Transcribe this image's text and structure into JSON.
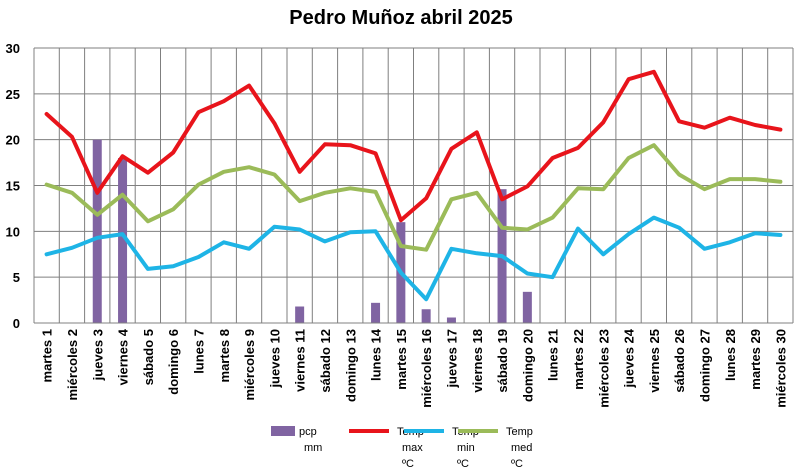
{
  "chart_data": {
    "type": "bar",
    "title": "Pedro Muñoz abril 2025",
    "xlabel": "",
    "ylabel": "",
    "ylim": [
      0,
      30
    ],
    "yticks": [
      0,
      5,
      10,
      15,
      20,
      25,
      30
    ],
    "grid": true,
    "legend_position": "bottom",
    "categories": [
      "martes 1",
      "miércoles 2",
      "jueves 3",
      "viernes 4",
      "sábado 5",
      "domingo 6",
      "lunes 7",
      "martes 8",
      "miércoles 9",
      "jueves 10",
      "viernes 11",
      "sábado 12",
      "domingo 13",
      "lunes 14",
      "martes 15",
      "miércoles 16",
      "jueves 17",
      "viernes 18",
      "sábado 19",
      "domingo 20",
      "lunes 21",
      "martes 22",
      "miércoles 23",
      "jueves 24",
      "viernes 25",
      "sábado 26",
      "domingo 27",
      "lunes 28",
      "martes 29",
      "miércoles 30"
    ],
    "series": [
      {
        "name": "pcp mm",
        "kind": "bar",
        "color": "#8064A2",
        "values": [
          0,
          0,
          20,
          18,
          0,
          0,
          0,
          0,
          0,
          0,
          1.8,
          0,
          0,
          2.2,
          11,
          1.5,
          0.6,
          0,
          14.6,
          3.4,
          0,
          0,
          0,
          0,
          0,
          0,
          0,
          0,
          0,
          0
        ]
      },
      {
        "name": "Temp max ºC",
        "kind": "line",
        "color": "#E8141B",
        "values": [
          22.8,
          20.3,
          14.2,
          18.2,
          16.4,
          18.6,
          23,
          24.2,
          25.9,
          21.8,
          16.5,
          19.5,
          19.4,
          18.5,
          11.2,
          13.6,
          19,
          20.8,
          13.5,
          14.9,
          18,
          19.1,
          21.9,
          26.6,
          27.4,
          22,
          21.3,
          22.4,
          21.6,
          21.1
        ]
      },
      {
        "name": "Temp min ºC",
        "kind": "line",
        "color": "#1EB4E6",
        "values": [
          7.5,
          8.2,
          9.3,
          9.7,
          5.9,
          6.2,
          7.2,
          8.8,
          8.1,
          10.5,
          10.2,
          8.9,
          9.9,
          10,
          5.5,
          2.6,
          8.1,
          7.6,
          7.3,
          5.4,
          5,
          10.3,
          7.5,
          9.7,
          11.5,
          10.4,
          8.1,
          8.8,
          9.8,
          9.6
        ]
      },
      {
        "name": "Temp med ºC",
        "kind": "line",
        "color": "#9BBB59",
        "values": [
          15.1,
          14.2,
          11.8,
          14,
          11.1,
          12.4,
          15.1,
          16.5,
          17,
          16.2,
          13.3,
          14.2,
          14.7,
          14.3,
          8.4,
          8,
          13.5,
          14.2,
          10.4,
          10.2,
          11.5,
          14.7,
          14.6,
          18,
          19.4,
          16.2,
          14.6,
          15.7,
          15.7,
          15.4
        ]
      }
    ]
  }
}
